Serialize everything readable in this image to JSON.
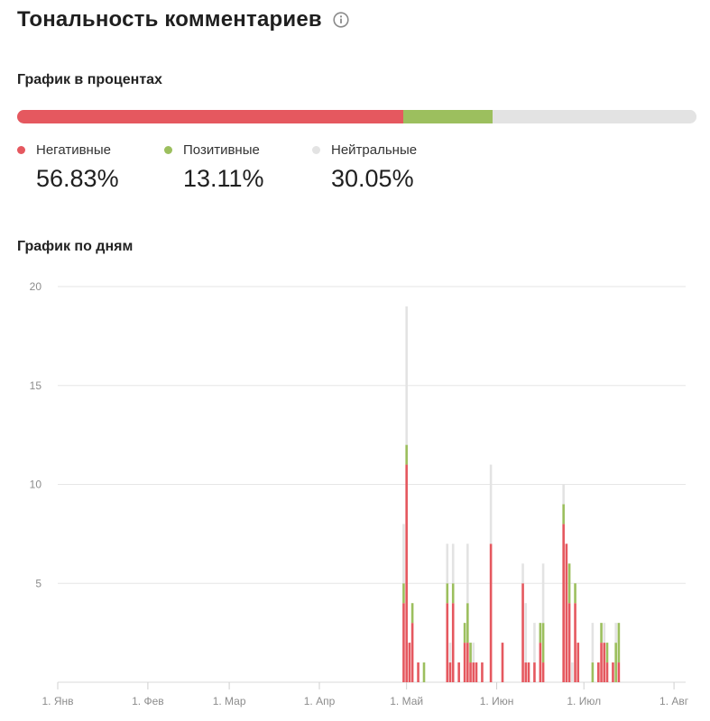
{
  "header": {
    "title": "Тональность комментариев",
    "info_icon": "info-circle-icon"
  },
  "percent_section": {
    "title": "График в процентах"
  },
  "days_section": {
    "title": "График по дням"
  },
  "colors": {
    "negative": "#e5585f",
    "positive": "#9cbf5e",
    "neutral": "#e3e3e3"
  },
  "percent_bar": {
    "negative": 56.83,
    "positive": 13.11,
    "neutral": 30.05
  },
  "legend": [
    {
      "key": "negative",
      "label": "Негативные",
      "value": "56.83%"
    },
    {
      "key": "positive",
      "label": "Позитивные",
      "value": "13.11%"
    },
    {
      "key": "neutral",
      "label": "Нейтральные",
      "value": "30.05%"
    }
  ],
  "chart_data": {
    "type": "bar",
    "stacked": true,
    "ylim": [
      0,
      20
    ],
    "yticks": [
      "20",
      "15",
      "10",
      "5"
    ],
    "grid": true,
    "x_range": [
      "2019-01-01",
      "2019-08-05"
    ],
    "xticks": [
      {
        "label": "1. Янв",
        "date": "2019-01-01"
      },
      {
        "label": "1. Фев",
        "date": "2019-02-01"
      },
      {
        "label": "1. Мар",
        "date": "2019-03-01"
      },
      {
        "label": "1. Апр",
        "date": "2019-04-01"
      },
      {
        "label": "1. Май",
        "date": "2019-05-01"
      },
      {
        "label": "1. Июн",
        "date": "2019-06-01"
      },
      {
        "label": "1. Июл",
        "date": "2019-07-01"
      },
      {
        "label": "1. Авг",
        "date": "2019-08-01"
      }
    ],
    "series_keys": [
      "negative",
      "positive",
      "neutral"
    ],
    "days": [
      {
        "date": "2019-04-30",
        "negative": 4,
        "positive": 1,
        "neutral": 3
      },
      {
        "date": "2019-05-01",
        "negative": 11,
        "positive": 1,
        "neutral": 7
      },
      {
        "date": "2019-05-02",
        "negative": 2,
        "positive": 0,
        "neutral": 0
      },
      {
        "date": "2019-05-03",
        "negative": 3,
        "positive": 1,
        "neutral": 0
      },
      {
        "date": "2019-05-05",
        "negative": 1,
        "positive": 0,
        "neutral": 0
      },
      {
        "date": "2019-05-07",
        "negative": 0,
        "positive": 1,
        "neutral": 0
      },
      {
        "date": "2019-05-15",
        "negative": 4,
        "positive": 1,
        "neutral": 2
      },
      {
        "date": "2019-05-16",
        "negative": 1,
        "positive": 0,
        "neutral": 1
      },
      {
        "date": "2019-05-17",
        "negative": 4,
        "positive": 1,
        "neutral": 2
      },
      {
        "date": "2019-05-19",
        "negative": 1,
        "positive": 0,
        "neutral": 0
      },
      {
        "date": "2019-05-21",
        "negative": 2,
        "positive": 1,
        "neutral": 0
      },
      {
        "date": "2019-05-22",
        "negative": 2,
        "positive": 2,
        "neutral": 3
      },
      {
        "date": "2019-05-23",
        "negative": 1,
        "positive": 1,
        "neutral": 0
      },
      {
        "date": "2019-05-24",
        "negative": 1,
        "positive": 0,
        "neutral": 1
      },
      {
        "date": "2019-05-25",
        "negative": 1,
        "positive": 0,
        "neutral": 0
      },
      {
        "date": "2019-05-27",
        "negative": 1,
        "positive": 0,
        "neutral": 0
      },
      {
        "date": "2019-05-30",
        "negative": 7,
        "positive": 0,
        "neutral": 4
      },
      {
        "date": "2019-06-03",
        "negative": 2,
        "positive": 0,
        "neutral": 0
      },
      {
        "date": "2019-06-10",
        "negative": 5,
        "positive": 0,
        "neutral": 1
      },
      {
        "date": "2019-06-11",
        "negative": 1,
        "positive": 0,
        "neutral": 3
      },
      {
        "date": "2019-06-12",
        "negative": 1,
        "positive": 0,
        "neutral": 0
      },
      {
        "date": "2019-06-14",
        "negative": 1,
        "positive": 0,
        "neutral": 2
      },
      {
        "date": "2019-06-16",
        "negative": 2,
        "positive": 1,
        "neutral": 0
      },
      {
        "date": "2019-06-17",
        "negative": 1,
        "positive": 2,
        "neutral": 3
      },
      {
        "date": "2019-06-24",
        "negative": 8,
        "positive": 1,
        "neutral": 1
      },
      {
        "date": "2019-06-25",
        "negative": 7,
        "positive": 0,
        "neutral": 0
      },
      {
        "date": "2019-06-26",
        "negative": 4,
        "positive": 2,
        "neutral": 0
      },
      {
        "date": "2019-06-27",
        "negative": 0,
        "positive": 0,
        "neutral": 1
      },
      {
        "date": "2019-06-28",
        "negative": 4,
        "positive": 1,
        "neutral": 0
      },
      {
        "date": "2019-06-29",
        "negative": 2,
        "positive": 0,
        "neutral": 0
      },
      {
        "date": "2019-07-04",
        "negative": 0,
        "positive": 1,
        "neutral": 2
      },
      {
        "date": "2019-07-06",
        "negative": 1,
        "positive": 0,
        "neutral": 0
      },
      {
        "date": "2019-07-07",
        "negative": 2,
        "positive": 1,
        "neutral": 0
      },
      {
        "date": "2019-07-08",
        "negative": 2,
        "positive": 0,
        "neutral": 1
      },
      {
        "date": "2019-07-09",
        "negative": 1,
        "positive": 1,
        "neutral": 0
      },
      {
        "date": "2019-07-11",
        "negative": 1,
        "positive": 0,
        "neutral": 0
      },
      {
        "date": "2019-07-12",
        "negative": 0,
        "positive": 2,
        "neutral": 1
      },
      {
        "date": "2019-07-13",
        "negative": 1,
        "positive": 2,
        "neutral": 0
      }
    ]
  }
}
